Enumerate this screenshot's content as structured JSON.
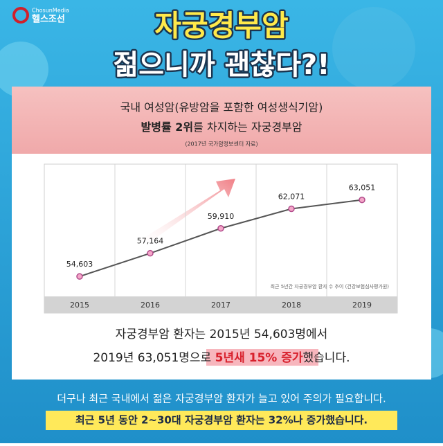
{
  "logo": {
    "brand": "ChosunMedia",
    "name": "헬스조선"
  },
  "header": {
    "title": "자궁경부암",
    "subtitle": "젊으니까 괜찮다?!"
  },
  "panel": {
    "line1": "국내 여성암(유방암을 포함한 여성생식기암)",
    "line2_bold": "발병률 2위",
    "line2_rest": "를 차지하는 자궁경부암",
    "source": "(2017년 국가암정보센터 자료)"
  },
  "chart_data": {
    "type": "line",
    "note": "최근 5년간 자궁경부암 환자 수 추이 (건강보험심사평가원)",
    "categories": [
      "2015",
      "2016",
      "2017",
      "2018",
      "2019"
    ],
    "values": [
      54603,
      57164,
      59910,
      62071,
      63051
    ],
    "value_labels": [
      "54,603",
      "57,164",
      "59,910",
      "62,071",
      "63,051"
    ],
    "ylim": [
      52400,
      67000
    ],
    "color": "#555555",
    "marker_color": "#f4a6c8"
  },
  "body": {
    "line1": "자궁경부암 환자는 2015년 54,603명에서",
    "line2_start": "2019년 63,051명으로 ",
    "line2_highlight": "5년새 15% 증가",
    "line2_end": "했습니다."
  },
  "footer": {
    "line1": "더구나 최근 국내에서 젊은 자궁경부암 환자가 늘고 있어 주의가 필요합니다.",
    "line2": "최근 5년 동안 2~30대 자궁경부암 환자는 32%나 증가했습니다."
  }
}
